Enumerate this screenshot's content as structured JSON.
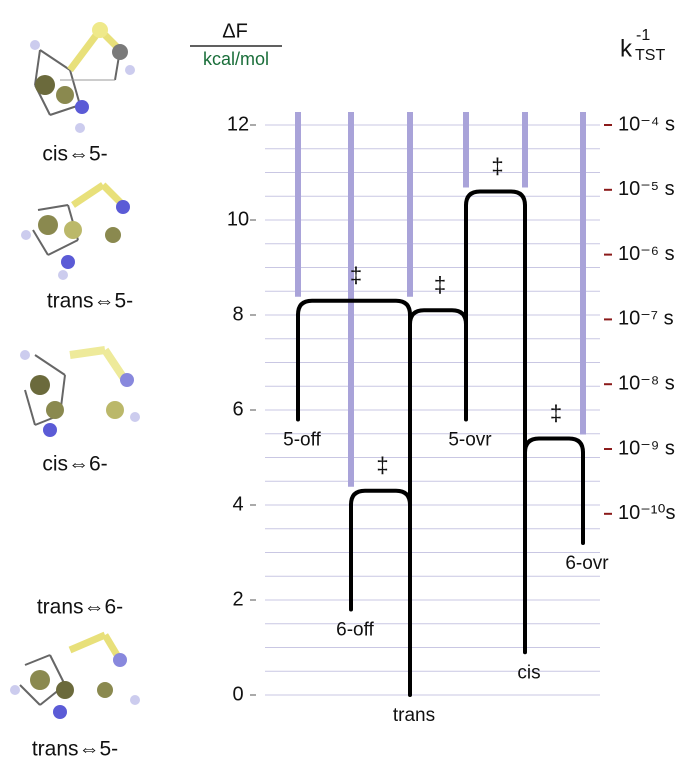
{
  "chart_data": {
    "type": "energy-diagram",
    "ylabel": "ΔF",
    "ylabel_unit": "kcal/mol",
    "y2label": "k",
    "y2label_sub": "TST",
    "y2label_sup": "-1",
    "ylim": [
      0,
      12
    ],
    "yticks": [
      0,
      2,
      4,
      6,
      8,
      10,
      12
    ],
    "ygrid": [
      0,
      0.5,
      1,
      1.5,
      2,
      2.5,
      3,
      3.5,
      4,
      4.5,
      5,
      5.5,
      6,
      6.5,
      7,
      7.5,
      8,
      8.5,
      9,
      9.5,
      10,
      10.5,
      11,
      11.5,
      12
    ],
    "y2log": true,
    "y2lim": [
      1.6e-13,
      0.0001
    ],
    "y2ticks": [
      {
        "value": 0.0001,
        "label": "10⁻⁴ s"
      },
      {
        "value": 1e-05,
        "label": "10⁻⁵ s"
      },
      {
        "value": 1e-06,
        "label": "10⁻⁶ s"
      },
      {
        "value": 1e-07,
        "label": "10⁻⁷ s"
      },
      {
        "value": 1e-08,
        "label": "10⁻⁸ s"
      },
      {
        "value": 1e-09,
        "label": "10⁻⁹ s"
      },
      {
        "value": 1e-10,
        "label": "10⁻¹⁰s"
      }
    ],
    "states": [
      {
        "name": "5-off",
        "value": 5.8
      },
      {
        "name": "6-off",
        "value": 1.8
      },
      {
        "name": "trans",
        "value": 0
      },
      {
        "name": "5-ovr",
        "value": 5.8
      },
      {
        "name": "cis",
        "value": 0.9
      },
      {
        "name": "6-ovr",
        "value": 3.2
      }
    ],
    "transitions": [
      {
        "from": "5-off",
        "to": "trans",
        "value": 8.3,
        "label": "‡"
      },
      {
        "from": "6-off",
        "to": "trans",
        "value": 4.3,
        "label": "‡"
      },
      {
        "from": "trans",
        "to": "5-ovr",
        "value": 8.1,
        "label": "‡"
      },
      {
        "from": "5-ovr",
        "to": "cis",
        "value": 10.6,
        "label": "‡"
      },
      {
        "from": "cis",
        "to": "6-ovr",
        "value": 5.4,
        "label": "‡"
      }
    ],
    "line_color": "#000000",
    "column_color": "#a9a3d9",
    "grid_color": "#c9c7e3"
  },
  "side_labels": [
    "cis⇔5-",
    "trans⇔5-",
    "cis⇔6-",
    "trans⇔6-",
    "trans⇔5-"
  ]
}
